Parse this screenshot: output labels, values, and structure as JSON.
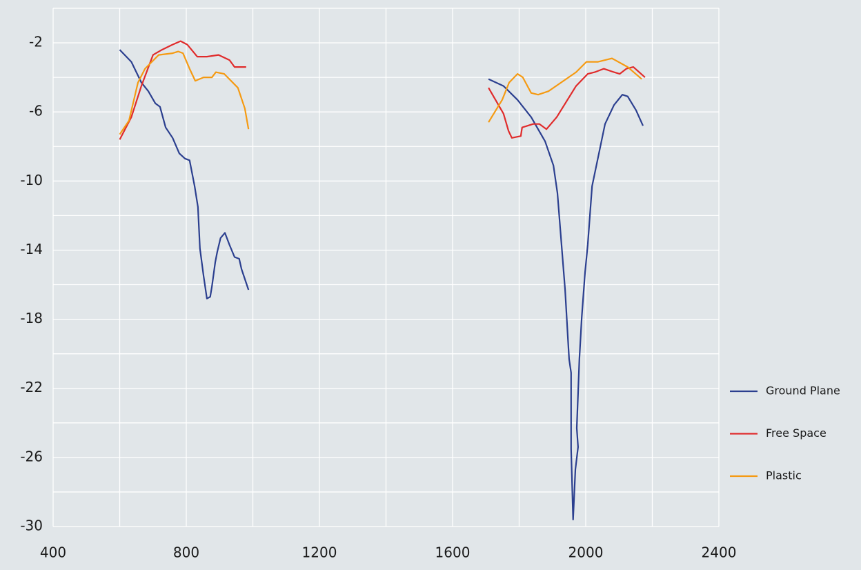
{
  "chart_data": {
    "type": "line",
    "xlim": [
      400,
      2400
    ],
    "ylim": [
      -30,
      0
    ],
    "xticks": [
      400,
      800,
      1200,
      1600,
      2000,
      2400
    ],
    "yticks": [
      -2,
      -6,
      -10,
      -14,
      -18,
      -22,
      -26,
      -30
    ],
    "xgrid": [
      400,
      600,
      800,
      1000,
      1200,
      1400,
      1600,
      1800,
      2000,
      2200,
      2400
    ],
    "ygrid": [
      0,
      -2,
      -4,
      -6,
      -8,
      -10,
      -12,
      -14,
      -16,
      -18,
      -20,
      -22,
      -24,
      -26,
      -28,
      -30
    ],
    "grid": true,
    "legend": "right",
    "series": [
      {
        "name": "Ground Plane",
        "color": "#2b3f8f",
        "x": [
          600,
          635,
          665,
          686,
          707,
          721,
          738,
          759,
          779,
          796,
          810,
          825,
          835,
          841,
          852,
          862,
          872,
          877,
          887,
          893,
          903,
          916,
          930,
          945,
          959,
          966,
          987,
          null,
          1708,
          1753,
          1795,
          1836,
          1878,
          1903,
          1915,
          1938,
          1950,
          1956,
          1956,
          1962,
          1969,
          1977,
          1973,
          1981,
          1988,
          1998,
          2006,
          2019,
          2058,
          2085,
          2110,
          2126,
          2151,
          2172
        ],
        "values": [
          -2.4,
          -3.1,
          -4.3,
          -4.8,
          -5.5,
          -5.7,
          -6.9,
          -7.5,
          -8.4,
          -8.7,
          -8.8,
          -10.3,
          -11.5,
          -13.9,
          -15.5,
          -16.8,
          -16.7,
          -16.1,
          -14.7,
          -14.1,
          -13.3,
          -13.0,
          -13.7,
          -14.4,
          -14.5,
          -15.1,
          -16.3,
          null,
          -4.1,
          -4.5,
          -5.3,
          -6.3,
          -7.7,
          -9.1,
          -10.7,
          -16.3,
          -20.3,
          -21.1,
          -25.5,
          -29.6,
          -26.7,
          -25.4,
          -24.3,
          -20.3,
          -17.9,
          -15.3,
          -13.7,
          -10.3,
          -6.7,
          -5.6,
          -5.0,
          -5.1,
          -5.9,
          -6.8
        ]
      },
      {
        "name": "Free Space",
        "color": "#e02b2b",
        "x": [
          600,
          635,
          665,
          700,
          727,
          759,
          783,
          803,
          833,
          862,
          897,
          930,
          945,
          980,
          null,
          1708,
          1753,
          1768,
          1778,
          1805,
          1809,
          1842,
          1861,
          1882,
          1913,
          1971,
          2006,
          2027,
          2054,
          2085,
          2102,
          2122,
          2143,
          2178
        ],
        "values": [
          -7.6,
          -6.3,
          -4.5,
          -2.7,
          -2.4,
          -2.1,
          -1.9,
          -2.1,
          -2.8,
          -2.8,
          -2.7,
          -3.0,
          -3.4,
          -3.4,
          null,
          -4.6,
          -6.1,
          -7.1,
          -7.5,
          -7.4,
          -6.9,
          -6.7,
          -6.7,
          -7.0,
          -6.3,
          -4.5,
          -3.8,
          -3.7,
          -3.5,
          -3.7,
          -3.8,
          -3.5,
          -3.4,
          -4.0
        ]
      },
      {
        "name": "Plastic",
        "color": "#f59a12",
        "x": [
          600,
          628,
          655,
          676,
          717,
          759,
          776,
          790,
          810,
          827,
          852,
          877,
          889,
          914,
          955,
          976,
          987,
          null,
          1708,
          1749,
          1770,
          1795,
          1811,
          1836,
          1857,
          1888,
          1971,
          2002,
          2037,
          2079,
          2126,
          2168
        ],
        "values": [
          -7.3,
          -6.5,
          -4.3,
          -3.5,
          -2.7,
          -2.6,
          -2.5,
          -2.6,
          -3.5,
          -4.2,
          -4.0,
          -4.0,
          -3.7,
          -3.8,
          -4.6,
          -5.8,
          -7.0,
          null,
          -6.6,
          -5.3,
          -4.3,
          -3.8,
          -4.0,
          -4.9,
          -5.0,
          -4.8,
          -3.7,
          -3.1,
          -3.1,
          -2.9,
          -3.4,
          -4.1
        ]
      }
    ]
  }
}
